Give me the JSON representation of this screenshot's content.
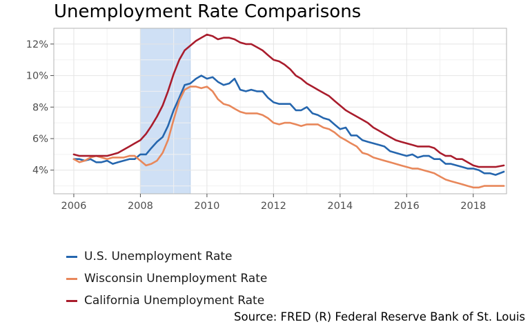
{
  "chart_data": {
    "type": "line",
    "title": "Unemployment Rate Comparisons",
    "xlabel": "",
    "ylabel": "",
    "xlim": [
      2005.4,
      2019.0
    ],
    "ylim": [
      2.5,
      13.0
    ],
    "x_ticks": [
      2006,
      2008,
      2010,
      2012,
      2014,
      2016,
      2018
    ],
    "x_tick_labels": [
      "2006",
      "2008",
      "2010",
      "2012",
      "2014",
      "2016",
      "2018"
    ],
    "y_ticks": [
      4,
      6,
      8,
      10,
      12
    ],
    "y_tick_labels": [
      "4%",
      "6%",
      "8%",
      "10%",
      "12%"
    ],
    "grid": true,
    "legend_position": "bottom-left",
    "recession": {
      "start": 2008.0,
      "end": 2009.5,
      "color": "#cfe0f5"
    },
    "source": "Source: FRED (R) Federal Reserve Bank of St. Louis",
    "series": [
      {
        "name": "U.S. Unemployment Rate",
        "color": "#2566ae",
        "points": [
          [
            2006.0,
            4.7
          ],
          [
            2006.17,
            4.7
          ],
          [
            2006.33,
            4.6
          ],
          [
            2006.5,
            4.7
          ],
          [
            2006.67,
            4.5
          ],
          [
            2006.83,
            4.5
          ],
          [
            2007.0,
            4.6
          ],
          [
            2007.17,
            4.4
          ],
          [
            2007.33,
            4.5
          ],
          [
            2007.5,
            4.6
          ],
          [
            2007.67,
            4.7
          ],
          [
            2007.83,
            4.7
          ],
          [
            2008.0,
            5.0
          ],
          [
            2008.17,
            5.0
          ],
          [
            2008.33,
            5.4
          ],
          [
            2008.5,
            5.8
          ],
          [
            2008.67,
            6.1
          ],
          [
            2008.83,
            6.8
          ],
          [
            2009.0,
            7.8
          ],
          [
            2009.17,
            8.6
          ],
          [
            2009.33,
            9.4
          ],
          [
            2009.5,
            9.5
          ],
          [
            2009.67,
            9.8
          ],
          [
            2009.83,
            10.0
          ],
          [
            2010.0,
            9.8
          ],
          [
            2010.17,
            9.9
          ],
          [
            2010.33,
            9.6
          ],
          [
            2010.5,
            9.4
          ],
          [
            2010.67,
            9.5
          ],
          [
            2010.83,
            9.8
          ],
          [
            2011.0,
            9.1
          ],
          [
            2011.17,
            9.0
          ],
          [
            2011.33,
            9.1
          ],
          [
            2011.5,
            9.0
          ],
          [
            2011.67,
            9.0
          ],
          [
            2011.83,
            8.6
          ],
          [
            2012.0,
            8.3
          ],
          [
            2012.17,
            8.2
          ],
          [
            2012.33,
            8.2
          ],
          [
            2012.5,
            8.2
          ],
          [
            2012.67,
            7.8
          ],
          [
            2012.83,
            7.8
          ],
          [
            2013.0,
            8.0
          ],
          [
            2013.17,
            7.6
          ],
          [
            2013.33,
            7.5
          ],
          [
            2013.5,
            7.3
          ],
          [
            2013.67,
            7.2
          ],
          [
            2013.83,
            6.9
          ],
          [
            2014.0,
            6.6
          ],
          [
            2014.17,
            6.7
          ],
          [
            2014.33,
            6.2
          ],
          [
            2014.5,
            6.2
          ],
          [
            2014.67,
            5.9
          ],
          [
            2014.83,
            5.8
          ],
          [
            2015.0,
            5.7
          ],
          [
            2015.17,
            5.6
          ],
          [
            2015.33,
            5.5
          ],
          [
            2015.5,
            5.2
          ],
          [
            2015.67,
            5.1
          ],
          [
            2015.83,
            5.0
          ],
          [
            2016.0,
            4.9
          ],
          [
            2016.17,
            5.0
          ],
          [
            2016.33,
            4.8
          ],
          [
            2016.5,
            4.9
          ],
          [
            2016.67,
            4.9
          ],
          [
            2016.83,
            4.7
          ],
          [
            2017.0,
            4.7
          ],
          [
            2017.17,
            4.4
          ],
          [
            2017.33,
            4.4
          ],
          [
            2017.5,
            4.3
          ],
          [
            2017.67,
            4.2
          ],
          [
            2017.83,
            4.1
          ],
          [
            2018.0,
            4.1
          ],
          [
            2018.17,
            4.0
          ],
          [
            2018.33,
            3.8
          ],
          [
            2018.5,
            3.8
          ],
          [
            2018.67,
            3.7
          ],
          [
            2018.92,
            3.9
          ]
        ]
      },
      {
        "name": "Wisconsin Unemployment Rate",
        "color": "#e8875a",
        "points": [
          [
            2006.0,
            4.7
          ],
          [
            2006.17,
            4.5
          ],
          [
            2006.33,
            4.6
          ],
          [
            2006.5,
            4.8
          ],
          [
            2006.67,
            4.9
          ],
          [
            2006.83,
            4.8
          ],
          [
            2007.0,
            4.7
          ],
          [
            2007.17,
            4.8
          ],
          [
            2007.33,
            4.8
          ],
          [
            2007.5,
            4.8
          ],
          [
            2007.67,
            4.9
          ],
          [
            2007.83,
            4.9
          ],
          [
            2008.0,
            4.6
          ],
          [
            2008.17,
            4.3
          ],
          [
            2008.33,
            4.4
          ],
          [
            2008.5,
            4.6
          ],
          [
            2008.67,
            5.1
          ],
          [
            2008.83,
            5.9
          ],
          [
            2009.0,
            7.2
          ],
          [
            2009.17,
            8.4
          ],
          [
            2009.33,
            9.1
          ],
          [
            2009.5,
            9.3
          ],
          [
            2009.67,
            9.3
          ],
          [
            2009.83,
            9.2
          ],
          [
            2010.0,
            9.3
          ],
          [
            2010.17,
            9.0
          ],
          [
            2010.33,
            8.5
          ],
          [
            2010.5,
            8.2
          ],
          [
            2010.67,
            8.1
          ],
          [
            2010.83,
            7.9
          ],
          [
            2011.0,
            7.7
          ],
          [
            2011.17,
            7.6
          ],
          [
            2011.33,
            7.6
          ],
          [
            2011.5,
            7.6
          ],
          [
            2011.67,
            7.5
          ],
          [
            2011.83,
            7.3
          ],
          [
            2012.0,
            7.0
          ],
          [
            2012.17,
            6.9
          ],
          [
            2012.33,
            7.0
          ],
          [
            2012.5,
            7.0
          ],
          [
            2012.67,
            6.9
          ],
          [
            2012.83,
            6.8
          ],
          [
            2013.0,
            6.9
          ],
          [
            2013.17,
            6.9
          ],
          [
            2013.33,
            6.9
          ],
          [
            2013.5,
            6.7
          ],
          [
            2013.67,
            6.6
          ],
          [
            2013.83,
            6.4
          ],
          [
            2014.0,
            6.1
          ],
          [
            2014.17,
            5.9
          ],
          [
            2014.33,
            5.7
          ],
          [
            2014.5,
            5.5
          ],
          [
            2014.67,
            5.1
          ],
          [
            2014.83,
            5.0
          ],
          [
            2015.0,
            4.8
          ],
          [
            2015.17,
            4.7
          ],
          [
            2015.33,
            4.6
          ],
          [
            2015.5,
            4.5
          ],
          [
            2015.67,
            4.4
          ],
          [
            2015.83,
            4.3
          ],
          [
            2016.0,
            4.2
          ],
          [
            2016.17,
            4.1
          ],
          [
            2016.33,
            4.1
          ],
          [
            2016.5,
            4.0
          ],
          [
            2016.67,
            3.9
          ],
          [
            2016.83,
            3.8
          ],
          [
            2017.0,
            3.6
          ],
          [
            2017.17,
            3.4
          ],
          [
            2017.33,
            3.3
          ],
          [
            2017.5,
            3.2
          ],
          [
            2017.67,
            3.1
          ],
          [
            2017.83,
            3.0
          ],
          [
            2018.0,
            2.9
          ],
          [
            2018.17,
            2.9
          ],
          [
            2018.33,
            3.0
          ],
          [
            2018.5,
            3.0
          ],
          [
            2018.67,
            3.0
          ],
          [
            2018.92,
            3.0
          ]
        ]
      },
      {
        "name": "California Unemployment Rate",
        "color": "#a91c2c",
        "points": [
          [
            2006.0,
            5.0
          ],
          [
            2006.17,
            4.9
          ],
          [
            2006.33,
            4.9
          ],
          [
            2006.5,
            4.9
          ],
          [
            2006.67,
            4.9
          ],
          [
            2006.83,
            4.9
          ],
          [
            2007.0,
            4.9
          ],
          [
            2007.17,
            5.0
          ],
          [
            2007.33,
            5.1
          ],
          [
            2007.5,
            5.3
          ],
          [
            2007.67,
            5.5
          ],
          [
            2007.83,
            5.7
          ],
          [
            2008.0,
            5.9
          ],
          [
            2008.17,
            6.3
          ],
          [
            2008.33,
            6.8
          ],
          [
            2008.5,
            7.4
          ],
          [
            2008.67,
            8.1
          ],
          [
            2008.83,
            9.0
          ],
          [
            2009.0,
            10.1
          ],
          [
            2009.17,
            11.0
          ],
          [
            2009.33,
            11.6
          ],
          [
            2009.5,
            11.9
          ],
          [
            2009.67,
            12.2
          ],
          [
            2009.83,
            12.4
          ],
          [
            2010.0,
            12.6
          ],
          [
            2010.17,
            12.5
          ],
          [
            2010.33,
            12.3
          ],
          [
            2010.5,
            12.4
          ],
          [
            2010.67,
            12.4
          ],
          [
            2010.83,
            12.3
          ],
          [
            2011.0,
            12.1
          ],
          [
            2011.17,
            12.0
          ],
          [
            2011.33,
            12.0
          ],
          [
            2011.5,
            11.8
          ],
          [
            2011.67,
            11.6
          ],
          [
            2011.83,
            11.3
          ],
          [
            2012.0,
            11.0
          ],
          [
            2012.17,
            10.9
          ],
          [
            2012.33,
            10.7
          ],
          [
            2012.5,
            10.4
          ],
          [
            2012.67,
            10.0
          ],
          [
            2012.83,
            9.8
          ],
          [
            2013.0,
            9.5
          ],
          [
            2013.17,
            9.3
          ],
          [
            2013.33,
            9.1
          ],
          [
            2013.5,
            8.9
          ],
          [
            2013.67,
            8.7
          ],
          [
            2013.83,
            8.4
          ],
          [
            2014.0,
            8.1
          ],
          [
            2014.17,
            7.8
          ],
          [
            2014.33,
            7.6
          ],
          [
            2014.5,
            7.4
          ],
          [
            2014.67,
            7.2
          ],
          [
            2014.83,
            7.0
          ],
          [
            2015.0,
            6.7
          ],
          [
            2015.17,
            6.5
          ],
          [
            2015.33,
            6.3
          ],
          [
            2015.5,
            6.1
          ],
          [
            2015.67,
            5.9
          ],
          [
            2015.83,
            5.8
          ],
          [
            2016.0,
            5.7
          ],
          [
            2016.17,
            5.6
          ],
          [
            2016.33,
            5.5
          ],
          [
            2016.5,
            5.5
          ],
          [
            2016.67,
            5.5
          ],
          [
            2016.83,
            5.4
          ],
          [
            2017.0,
            5.1
          ],
          [
            2017.17,
            4.9
          ],
          [
            2017.33,
            4.9
          ],
          [
            2017.5,
            4.7
          ],
          [
            2017.67,
            4.7
          ],
          [
            2017.83,
            4.5
          ],
          [
            2018.0,
            4.3
          ],
          [
            2018.17,
            4.2
          ],
          [
            2018.33,
            4.2
          ],
          [
            2018.5,
            4.2
          ],
          [
            2018.67,
            4.2
          ],
          [
            2018.92,
            4.3
          ]
        ]
      }
    ]
  }
}
